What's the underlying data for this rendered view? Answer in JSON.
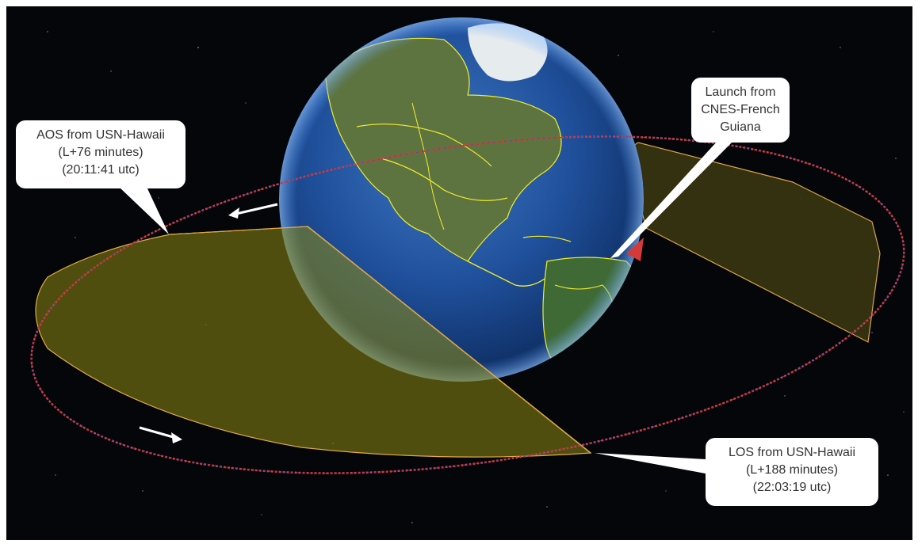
{
  "callouts": {
    "aos": {
      "line1": "AOS from USN-Hawaii",
      "line2": "(L+76 minutes)",
      "line3": "(20:11:41 utc)"
    },
    "launch": {
      "line1": "Launch from",
      "line2": "CNES-French",
      "line3": "Guiana"
    },
    "los": {
      "line1": "LOS from USN-Hawaii",
      "line2": "(L+188 minutes)",
      "line3": "(22:03:19 utc)"
    }
  },
  "colors": {
    "space": "#05060a",
    "ocean": "#1f4f9a",
    "land": "#4d6b3a",
    "borders": "#f2ee2a",
    "coverage_fill": "#8c8a12",
    "orbit_track": "#d43a3a",
    "callout_bg": "#ffffff",
    "callout_text": "#333333"
  },
  "icons": [
    "earth-globe",
    "direction-arrow",
    "direction-arrow"
  ]
}
